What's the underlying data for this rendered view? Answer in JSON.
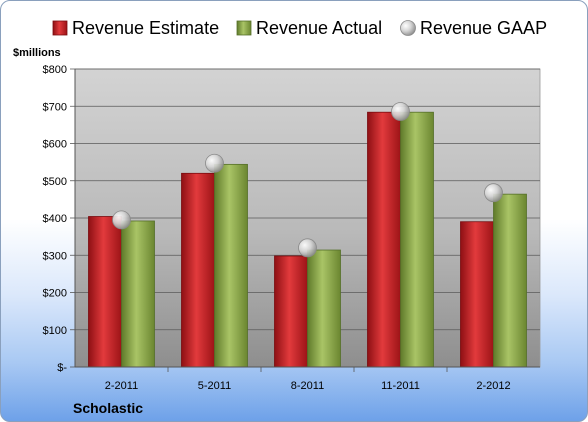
{
  "chart_data": {
    "type": "bar",
    "categories": [
      "2-2011",
      "5-2011",
      "8-2011",
      "11-2011",
      "2-2012"
    ],
    "series": [
      {
        "name": "Revenue Estimate",
        "kind": "bar",
        "color": "#cc1f24",
        "values": [
          404,
          520,
          298,
          684,
          390
        ]
      },
      {
        "name": "Revenue Actual",
        "kind": "bar",
        "color": "#8faa4b",
        "values": [
          392,
          544,
          314,
          684,
          464
        ]
      },
      {
        "name": "Revenue GAAP",
        "kind": "marker",
        "color": "#c8c8c8",
        "values": [
          395,
          547,
          320,
          686,
          468
        ]
      }
    ],
    "ylabel": "$millions",
    "ylim": [
      0,
      800
    ],
    "yticks": [
      0,
      100,
      200,
      300,
      400,
      500,
      600,
      700,
      800
    ],
    "ytick_labels": [
      "$-",
      "$100",
      "$200",
      "$300",
      "$400",
      "$500",
      "$600",
      "$700",
      "$800"
    ],
    "grid": true,
    "legend": "top",
    "company": "Scholastic"
  }
}
